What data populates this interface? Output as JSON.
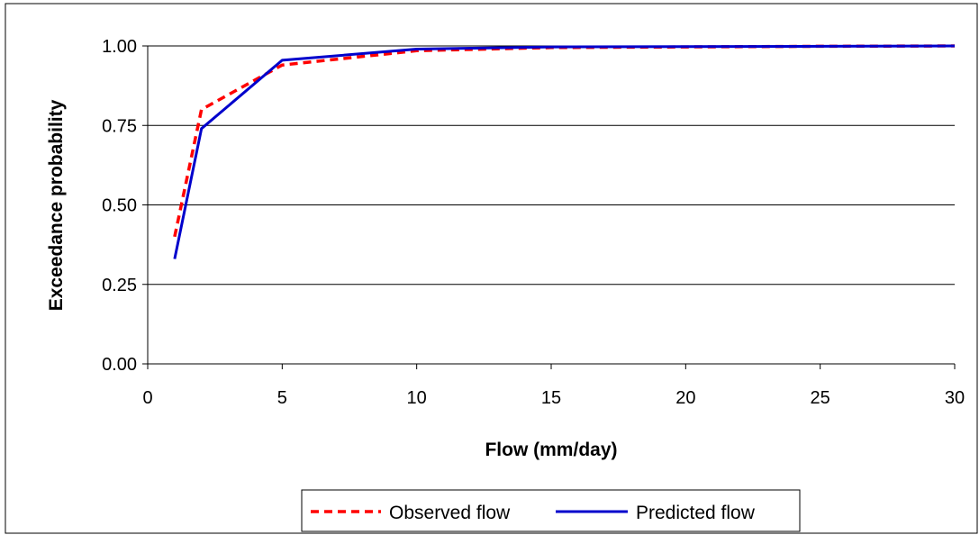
{
  "chart_data": {
    "type": "line",
    "title": "",
    "xlabel": "Flow (mm/day)",
    "ylabel": "Exceedance probability",
    "xlim": [
      0,
      30
    ],
    "ylim": [
      0,
      1
    ],
    "x_ticks": [
      0,
      5,
      10,
      15,
      20,
      25,
      30
    ],
    "x_tick_labels": [
      "0",
      "5",
      "10",
      "15",
      "20",
      "25",
      "30"
    ],
    "y_ticks": [
      0,
      0.25,
      0.5,
      0.75,
      1
    ],
    "y_tick_labels": [
      "0.00",
      "0.25",
      "0.50",
      "0.75",
      "1.00"
    ],
    "grid": "horizontal",
    "legend_position": "bottom",
    "series": [
      {
        "name": "Observed flow",
        "color": "#FF0000",
        "line_style": "dashed",
        "x": [
          1,
          2,
          5,
          10,
          15,
          20,
          25,
          30
        ],
        "y": [
          0.4,
          0.8,
          0.94,
          0.985,
          0.995,
          0.997,
          0.999,
          1.0
        ]
      },
      {
        "name": "Predicted flow",
        "color": "#0000CC",
        "line_style": "solid",
        "x": [
          1,
          2,
          5,
          10,
          15,
          20,
          25,
          30
        ],
        "y": [
          0.33,
          0.74,
          0.955,
          0.99,
          0.997,
          0.998,
          0.999,
          1.0
        ]
      }
    ]
  }
}
